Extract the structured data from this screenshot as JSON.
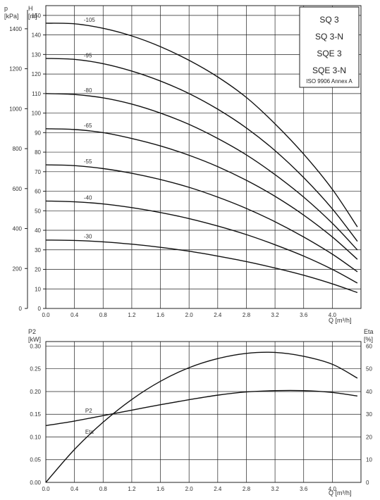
{
  "chart_data": [
    {
      "type": "line",
      "title": "",
      "xlabel": "Q [m³/h]",
      "ylabel": "H [m]",
      "ylabel_secondary": "p [kPa]",
      "xlim": [
        0,
        4.4
      ],
      "ylim": [
        0,
        155
      ],
      "x_ticks": [
        "0.0",
        "0.4",
        "0.8",
        "1.2",
        "1.6",
        "2.0",
        "2.4",
        "2.8",
        "3.2",
        "3.6",
        "4.0"
      ],
      "y_ticks": [
        "0",
        "10",
        "20",
        "30",
        "40",
        "50",
        "60",
        "70",
        "80",
        "90",
        "100",
        "110",
        "120",
        "130",
        "140",
        "150"
      ],
      "y2_ticks": [
        "0",
        "200",
        "400",
        "600",
        "800",
        "1000",
        "1200",
        "1400"
      ],
      "legend": [
        "SQ 3",
        "SQ 3-N",
        "SQE 3",
        "SQE 3-N",
        "ISO 9906 Annex A"
      ],
      "legend_position": "top-right",
      "grid": true,
      "series": [
        {
          "name": "-105",
          "x": [
            0,
            0.4,
            0.8,
            1.2,
            1.6,
            2.0,
            2.4,
            2.8,
            3.2,
            3.6,
            4.0,
            4.4
          ],
          "y": [
            146,
            145.7,
            143.4,
            139.5,
            134,
            127,
            118.5,
            108,
            94.5,
            79,
            61,
            39
          ]
        },
        {
          "name": "-95",
          "x": [
            0,
            0.4,
            0.8,
            1.2,
            1.6,
            2.0,
            2.4,
            2.8,
            3.2,
            3.6,
            4.0,
            4.4
          ],
          "y": [
            128,
            127.5,
            125.3,
            121.5,
            116.4,
            110,
            102,
            92.4,
            80.8,
            67,
            51,
            32
          ]
        },
        {
          "name": "-80",
          "x": [
            0,
            0.4,
            0.8,
            1.2,
            1.6,
            2.0,
            2.4,
            2.8,
            3.2,
            3.6,
            4.0,
            4.4
          ],
          "y": [
            110,
            109.5,
            107.8,
            104.6,
            100,
            94.2,
            87,
            78.6,
            68.5,
            57,
            43.6,
            28
          ]
        },
        {
          "name": "-65",
          "x": [
            0,
            0.4,
            0.8,
            1.2,
            1.6,
            2.0,
            2.4,
            2.8,
            3.2,
            3.6,
            4.0,
            4.4
          ],
          "y": [
            92,
            91.6,
            90,
            87,
            83.2,
            78.4,
            72.6,
            65.6,
            57.4,
            47.8,
            36.6,
            23.5
          ]
        },
        {
          "name": "-55",
          "x": [
            0,
            0.4,
            0.8,
            1.2,
            1.6,
            2.0,
            2.4,
            2.8,
            3.2,
            3.6,
            4.0,
            4.4
          ],
          "y": [
            73.5,
            73.1,
            71.6,
            69.2,
            66,
            62,
            57,
            51.2,
            44.4,
            36.6,
            27.8,
            17.5
          ]
        },
        {
          "name": "-40",
          "x": [
            0,
            0.4,
            0.8,
            1.2,
            1.6,
            2.0,
            2.4,
            2.8,
            3.2,
            3.6,
            4.0,
            4.4
          ],
          "y": [
            55,
            54.6,
            53.5,
            51.6,
            49.1,
            46,
            42.2,
            37.8,
            32.6,
            26.8,
            20,
            12
          ]
        },
        {
          "name": "-30",
          "x": [
            0,
            0.4,
            0.8,
            1.2,
            1.6,
            2.0,
            2.4,
            2.8,
            3.2,
            3.6,
            4.0,
            4.4
          ],
          "y": [
            35,
            34.8,
            34.1,
            32.9,
            31.3,
            29.3,
            26.8,
            24,
            20.7,
            17,
            12.6,
            7.5
          ]
        }
      ]
    },
    {
      "type": "line",
      "title": "",
      "xlabel": "Q [m³/h]",
      "ylabel": "P2 [kW]",
      "ylabel_secondary": "Eta [%]",
      "xlim": [
        0,
        4.4
      ],
      "ylim": [
        0,
        0.31
      ],
      "y2lim": [
        0,
        62
      ],
      "x_ticks": [
        "0.0",
        "0.4",
        "0.8",
        "1.2",
        "1.6",
        "2.0",
        "2.4",
        "2.8",
        "3.2",
        "3.6",
        "4.0"
      ],
      "y_ticks": [
        "0.00",
        "0.05",
        "0.10",
        "0.15",
        "0.20",
        "0.25",
        "0.30"
      ],
      "y2_ticks": [
        "0",
        "10",
        "20",
        "30",
        "40",
        "50",
        "60"
      ],
      "grid": true,
      "series": [
        {
          "name": "P2",
          "axis": "left",
          "x": [
            0,
            0.4,
            0.8,
            1.2,
            1.6,
            2.0,
            2.4,
            2.8,
            3.2,
            3.6,
            4.0,
            4.4
          ],
          "y": [
            0.125,
            0.135,
            0.147,
            0.159,
            0.171,
            0.182,
            0.192,
            0.199,
            0.202,
            0.202,
            0.198,
            0.189
          ]
        },
        {
          "name": "Eta",
          "axis": "right",
          "x": [
            0,
            0.4,
            0.8,
            1.2,
            1.6,
            2.0,
            2.4,
            2.8,
            3.2,
            3.6,
            4.0,
            4.4
          ],
          "y": [
            0,
            14.5,
            26.5,
            36.5,
            44.5,
            50.5,
            54.5,
            56.8,
            57.2,
            55.5,
            52,
            45
          ]
        }
      ]
    }
  ]
}
